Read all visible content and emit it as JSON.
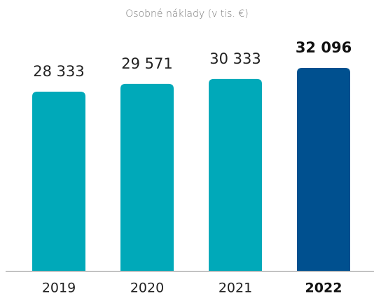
{
  "chart_data": {
    "type": "bar",
    "title": "Osobné náklady (v tis. €)",
    "categories": [
      "2019",
      "2020",
      "2021",
      "2022"
    ],
    "values": [
      28333,
      29571,
      30333,
      32096
    ],
    "value_labels": [
      "28 333",
      "29 571",
      "30 333",
      "32 096"
    ],
    "colors": [
      "#00a9b9",
      "#00a9b9",
      "#00a9b9",
      "#00508f"
    ]
  }
}
